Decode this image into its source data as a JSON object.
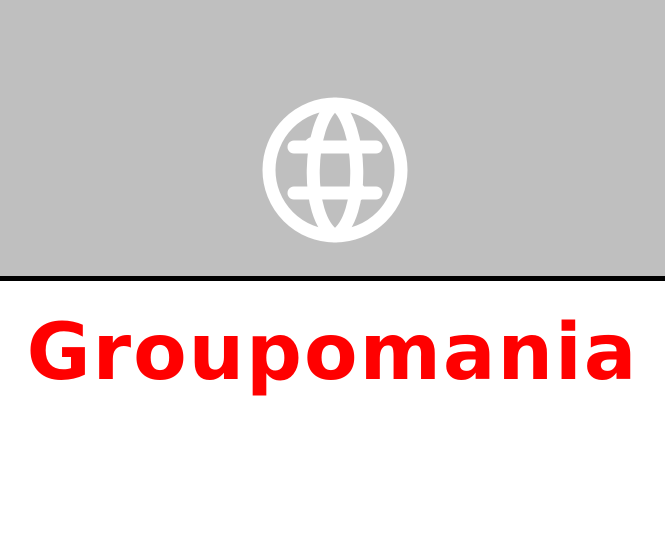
{
  "brand": {
    "name": "Groupomania"
  },
  "header": {
    "icon": "globe-icon"
  },
  "colors": {
    "banner_background": "#bfbfbf",
    "divider": "#000000",
    "icon": "#ffffff",
    "brand_text": "#ff0000",
    "page_background": "#ffffff"
  }
}
